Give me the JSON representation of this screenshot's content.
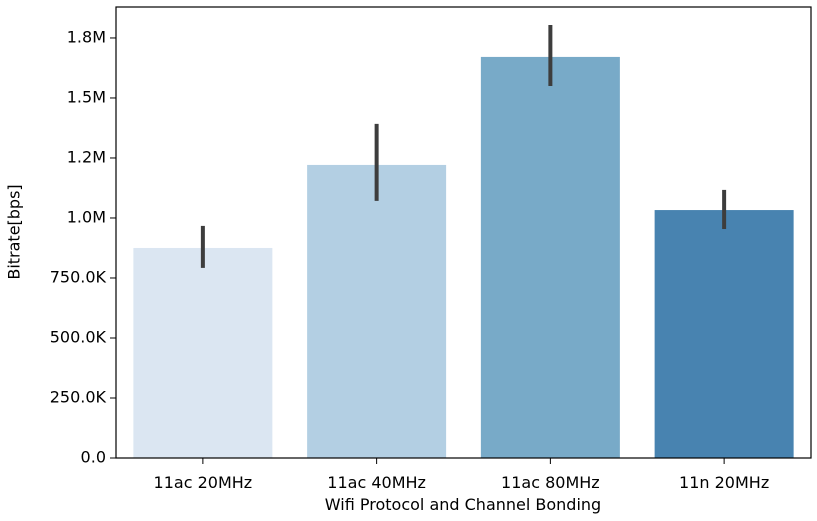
{
  "chart_data": {
    "type": "bar",
    "x_label": "Wifi Protocol and Channel Bonding",
    "y_label": "Bitrate[bps]",
    "categories": [
      "11ac 20MHz",
      "11ac 40MHz",
      "11ac 80MHz",
      "11n 20MHz"
    ],
    "values": [
      875000,
      1221000,
      1671000,
      1033000
    ],
    "ci_low": [
      792000,
      1071000,
      1550000,
      954000
    ],
    "ci_high": [
      967000,
      1392000,
      1804000,
      1117000
    ],
    "colors": [
      "#dbe6f2",
      "#b3cfe3",
      "#78aac8",
      "#4883b0"
    ],
    "error_color": "#3d3d3d",
    "ylim": [
      0,
      1879000
    ],
    "yticks": [
      {
        "value": 0,
        "label": "0.0"
      },
      {
        "value": 250000,
        "label": "250.0K"
      },
      {
        "value": 500000,
        "label": "500.0K"
      },
      {
        "value": 750000,
        "label": "750.0K"
      },
      {
        "value": 1000000,
        "label": "1.0M"
      },
      {
        "value": 1250000,
        "label": "1.2M"
      },
      {
        "value": 1500000,
        "label": "1.5M"
      },
      {
        "value": 1750000,
        "label": "1.8M"
      }
    ]
  }
}
